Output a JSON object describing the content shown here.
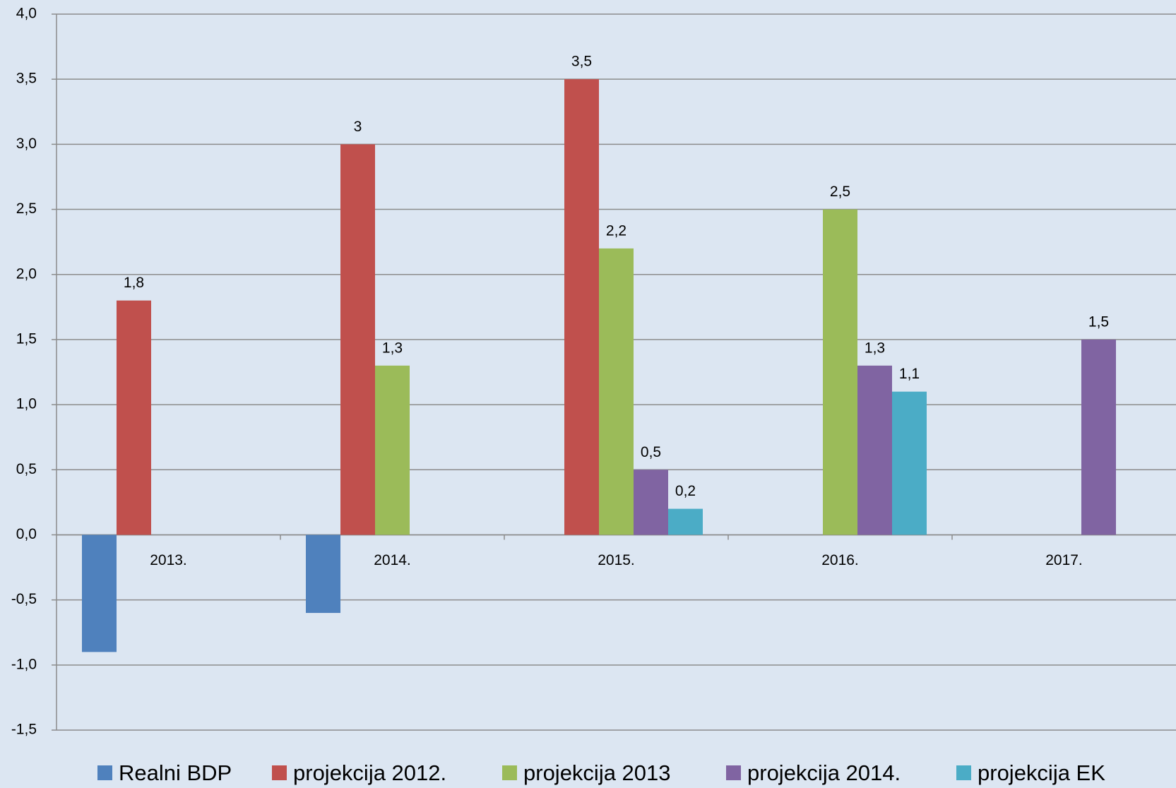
{
  "chart_data": {
    "type": "bar",
    "categories": [
      "2013.",
      "2014.",
      "2015.",
      "2016.",
      "2017."
    ],
    "series": [
      {
        "name": "Realni BDP",
        "color": "#4f81bd",
        "values": [
          -0.9,
          -0.6,
          null,
          null,
          null
        ]
      },
      {
        "name": "projekcija 2012.",
        "color": "#c0504d",
        "values": [
          1.8,
          3,
          3.5,
          null,
          null
        ],
        "value_labels": [
          "1,8",
          "3",
          "3,5",
          null,
          null
        ]
      },
      {
        "name": "projekcija 2013",
        "color": "#9bbb59",
        "values": [
          null,
          1.3,
          2.2,
          2.5,
          null
        ],
        "value_labels": [
          null,
          "1,3",
          "2,2",
          "2,5",
          null
        ]
      },
      {
        "name": "projekcija 2014.",
        "color": "#8064a2",
        "values": [
          null,
          null,
          0.5,
          1.3,
          1.5
        ],
        "value_labels": [
          null,
          null,
          "0,5",
          "1,3",
          "1,5"
        ]
      },
      {
        "name": "projekcija EK",
        "color": "#4bacc6",
        "values": [
          null,
          null,
          0.2,
          1.1,
          null
        ],
        "value_labels": [
          null,
          null,
          "0,2",
          "1,1",
          null
        ]
      }
    ],
    "ylim": [
      -1.5,
      4.0
    ],
    "yticks": [
      {
        "value": -1.5,
        "label": "-1,5"
      },
      {
        "value": -1.0,
        "label": "-1,0"
      },
      {
        "value": -0.5,
        "label": "-0,5"
      },
      {
        "value": 0,
        "label": "0,0"
      },
      {
        "value": 0.5,
        "label": "0,5"
      },
      {
        "value": 1.0,
        "label": "1,0"
      },
      {
        "value": 1.5,
        "label": "1,5"
      },
      {
        "value": 2.0,
        "label": "2,0"
      },
      {
        "value": 2.5,
        "label": "2,5"
      },
      {
        "value": 3.0,
        "label": "3,0"
      },
      {
        "value": 3.5,
        "label": "3,5"
      },
      {
        "value": 4.0,
        "label": "4,0"
      }
    ],
    "grid": true,
    "legend": "bottom"
  }
}
